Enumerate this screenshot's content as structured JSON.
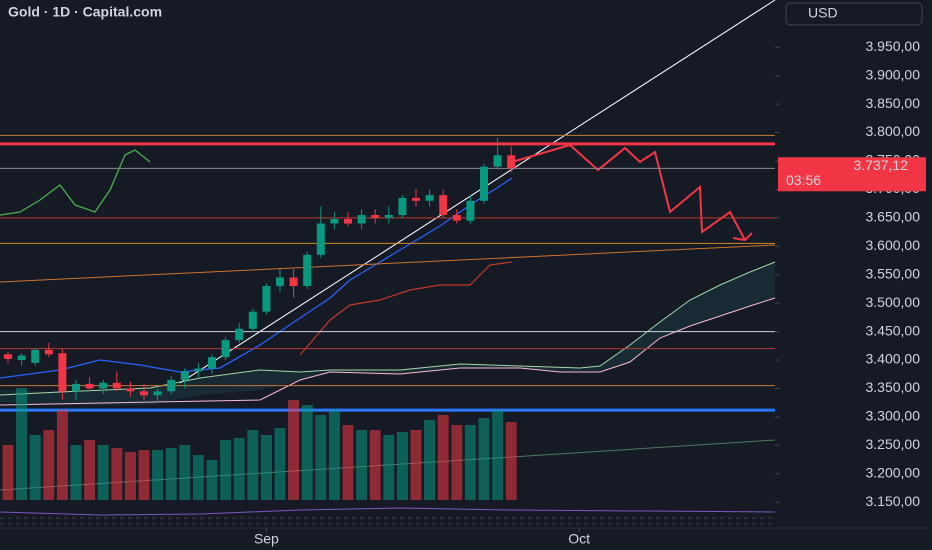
{
  "chart_data": {
    "type": "candlestick",
    "title": "Gold · 1D · Capital.com",
    "currency": "USD",
    "open": [
      3410,
      3400,
      3395,
      3418,
      3412,
      3345,
      3358,
      3350,
      3360,
      3350,
      3345,
      3338,
      3345,
      3365,
      3380,
      3385,
      3405,
      3435,
      3455,
      3485,
      3530,
      3545,
      3530,
      3585,
      3640,
      3648,
      3640,
      3655,
      3650,
      3655,
      3685,
      3680,
      3690,
      3655,
      3645,
      3680,
      3740,
      3760
    ],
    "high": [
      3415,
      3412,
      3420,
      3430,
      3420,
      3365,
      3370,
      3365,
      3380,
      3362,
      3358,
      3350,
      3372,
      3385,
      3395,
      3410,
      3440,
      3465,
      3490,
      3535,
      3560,
      3560,
      3590,
      3670,
      3660,
      3660,
      3665,
      3665,
      3670,
      3690,
      3700,
      3700,
      3700,
      3665,
      3690,
      3745,
      3790,
      3775
    ],
    "low": [
      3395,
      3390,
      3390,
      3405,
      3330,
      3330,
      3345,
      3340,
      3345,
      3335,
      3330,
      3325,
      3340,
      3350,
      3370,
      3375,
      3400,
      3430,
      3450,
      3480,
      3520,
      3510,
      3525,
      3580,
      3630,
      3635,
      3630,
      3640,
      3640,
      3650,
      3670,
      3670,
      3650,
      3640,
      3640,
      3675,
      3735,
      3730
    ],
    "close": [
      3402,
      3408,
      3418,
      3410,
      3345,
      3358,
      3350,
      3360,
      3350,
      3345,
      3338,
      3345,
      3365,
      3380,
      3385,
      3405,
      3435,
      3455,
      3485,
      3530,
      3545,
      3530,
      3585,
      3640,
      3648,
      3640,
      3655,
      3650,
      3655,
      3685,
      3680,
      3690,
      3655,
      3645,
      3680,
      3740,
      3760,
      3737
    ],
    "volume": [
      55,
      112,
      65,
      70,
      90,
      55,
      60,
      55,
      52,
      48,
      50,
      50,
      52,
      55,
      45,
      40,
      60,
      62,
      70,
      65,
      72,
      100,
      95,
      85,
      90,
      75,
      70,
      70,
      65,
      68,
      70,
      80,
      85,
      75,
      75,
      82,
      90,
      78
    ],
    "vlim": [
      0,
      120
    ],
    "up_color": "#089981",
    "down_color": "#f23645",
    "ylim": [
      3066,
      4033
    ],
    "yticks": [
      {
        "value": 3950,
        "label": "3.950,00"
      },
      {
        "value": 3900,
        "label": "3.900,00"
      },
      {
        "value": 3850,
        "label": "3.850,00"
      },
      {
        "value": 3800,
        "label": "3.800,00"
      },
      {
        "value": 3750,
        "label": "3.750,00"
      },
      {
        "value": 3700,
        "label": "3.700,00"
      },
      {
        "value": 3650,
        "label": "3.650,00"
      },
      {
        "value": 3600,
        "label": "3.600,00"
      },
      {
        "value": 3550,
        "label": "3.550,00"
      },
      {
        "value": 3500,
        "label": "3.500,00"
      },
      {
        "value": 3450,
        "label": "3.450,00"
      },
      {
        "value": 3400,
        "label": "3.400,00"
      },
      {
        "value": 3350,
        "label": "3.350,00"
      },
      {
        "value": 3300,
        "label": "3.300,00"
      },
      {
        "value": 3250,
        "label": "3.250,00"
      },
      {
        "value": 3200,
        "label": "3.200,00"
      },
      {
        "value": 3150,
        "label": "3.150,00"
      }
    ],
    "xticks": [
      {
        "value": 19,
        "label": "Sep"
      },
      {
        "value": 42,
        "label": "Oct"
      }
    ],
    "hlines": [
      {
        "value": 3795,
        "color": "#c8773a",
        "width": 1
      },
      {
        "value": 3780,
        "color": "#f23645",
        "width": 3
      },
      {
        "value": 3737,
        "color": "#8a8a8a",
        "width": 1
      },
      {
        "value": 3650,
        "color": "#c0392b",
        "width": 1
      },
      {
        "value": 3605,
        "color": "#d08a2a",
        "width": 1
      },
      {
        "value": 3450,
        "color": "#d1d4dc",
        "width": 1
      },
      {
        "value": 3420,
        "color": "#b03a2e",
        "width": 1
      },
      {
        "value": 3355,
        "color": "#c8773a",
        "width": 1
      },
      {
        "value": 3312,
        "color": "#2979ff",
        "width": 3
      }
    ],
    "last_price": {
      "value": 3737.12,
      "label": "3.737,12",
      "countdown": "03:56",
      "color": "#f23645"
    }
  }
}
